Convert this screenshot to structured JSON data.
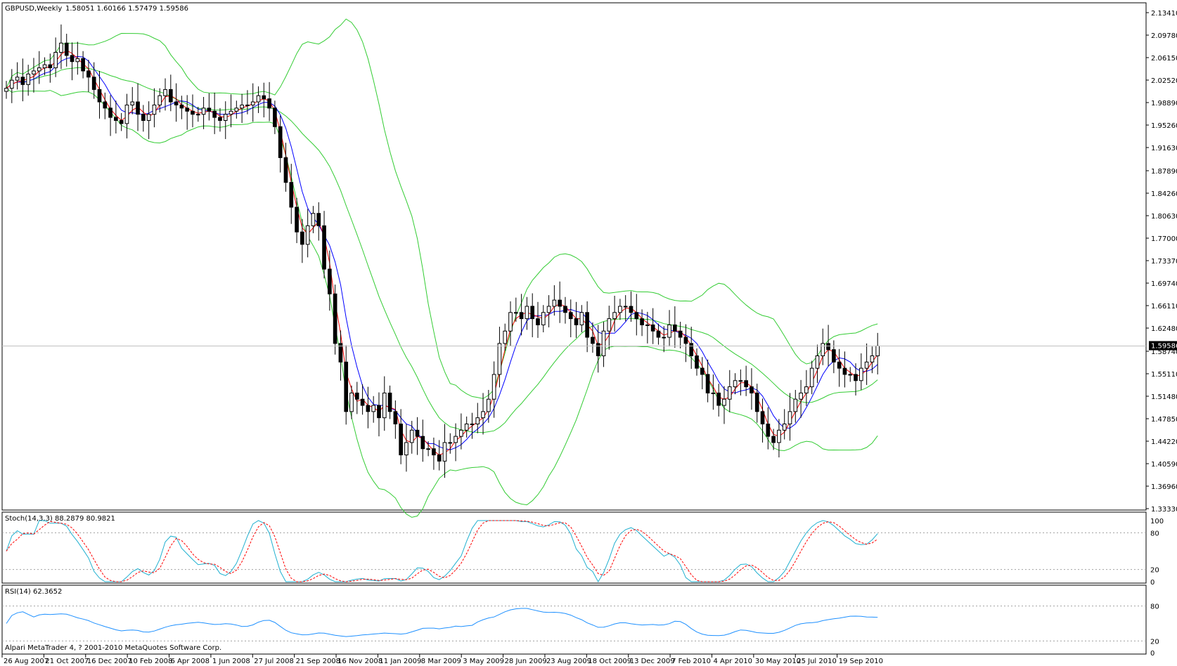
{
  "main_chart": {
    "title": "GBPUSD,Weekly",
    "ohlc_header": "1.58051 1.60166 1.57479 1.59586",
    "current_price_label": "1.59586",
    "y_ticks": [
      "2.13410",
      "2.09780",
      "2.06150",
      "2.02520",
      "1.98890",
      "1.95260",
      "1.91630",
      "1.87890",
      "1.84260",
      "1.80630",
      "1.77000",
      "1.73370",
      "1.69740",
      "1.66110",
      "1.62480",
      "1.58740",
      "1.55110",
      "1.51480",
      "1.47850",
      "1.44220",
      "1.40590",
      "1.36960",
      "1.33330"
    ],
    "colors": {
      "bollinger": "#33cc33",
      "ma_fast": "#ff0000",
      "ma_slow": "#0000ff",
      "candle_up": "#ffffff",
      "candle_down": "#000000",
      "price_line": "#c0c0c0"
    }
  },
  "stoch": {
    "label": "Stoch(14,3,3) 88.2879 80.9821",
    "y_ticks": [
      "100",
      "80",
      "20",
      "0"
    ],
    "colors": {
      "main": "#20b0d0",
      "signal": "#ff0000"
    }
  },
  "rsi": {
    "label": "RSI(14) 62.3652",
    "y_ticks": [
      "80",
      "20",
      "0"
    ],
    "colors": {
      "line": "#1e90ff"
    }
  },
  "footer": {
    "copyright": "Alpari MetaTrader 4, ? 2001-2010 MetaQuotes Software Corp."
  },
  "x_axis": {
    "labels": [
      "26 Aug 2007",
      "21 Oct 2007",
      "16 Dec 2007",
      "10 Feb 2008",
      "6 Apr 2008",
      "1 Jun 2008",
      "27 Jul 2008",
      "21 Sep 2008",
      "16 Nov 2008",
      "11 Jan 2009",
      "8 Mar 2009",
      "3 May 2009",
      "28 Jun 2009",
      "23 Aug 2009",
      "18 Oct 2009",
      "13 Dec 2009",
      "7 Feb 2010",
      "4 Apr 2010",
      "30 May 2010",
      "25 Jul 2010",
      "19 Sep 2010"
    ]
  },
  "chart_data": {
    "type": "candlestick",
    "x_start": "26 Aug 2007",
    "interval": "weekly",
    "ylim": [
      1.3333,
      2.1341
    ],
    "close_series": [
      2.012,
      2.025,
      2.03,
      2.018,
      2.035,
      2.04,
      2.045,
      2.05,
      2.045,
      2.07,
      2.085,
      2.065,
      2.055,
      2.06,
      2.04,
      2.03,
      2.01,
      1.99,
      1.98,
      1.965,
      1.96,
      1.955,
      1.985,
      1.99,
      1.97,
      1.96,
      1.97,
      1.985,
      2.0,
      2.01,
      1.99,
      1.985,
      1.98,
      1.975,
      1.97,
      1.97,
      1.98,
      1.975,
      1.965,
      1.96,
      1.97,
      1.975,
      1.98,
      1.985,
      1.985,
      1.99,
      2.0,
      1.995,
      1.98,
      1.95,
      1.9,
      1.86,
      1.82,
      1.78,
      1.76,
      1.79,
      1.81,
      1.79,
      1.72,
      1.68,
      1.6,
      1.57,
      1.49,
      1.52,
      1.51,
      1.5,
      1.49,
      1.5,
      1.48,
      1.52,
      1.49,
      1.47,
      1.42,
      1.44,
      1.46,
      1.45,
      1.43,
      1.43,
      1.42,
      1.41,
      1.44,
      1.44,
      1.45,
      1.46,
      1.47,
      1.47,
      1.48,
      1.49,
      1.51,
      1.55,
      1.6,
      1.62,
      1.65,
      1.65,
      1.64,
      1.66,
      1.64,
      1.63,
      1.65,
      1.66,
      1.67,
      1.66,
      1.65,
      1.64,
      1.63,
      1.65,
      1.61,
      1.6,
      1.58,
      1.62,
      1.64,
      1.65,
      1.66,
      1.66,
      1.65,
      1.64,
      1.63,
      1.63,
      1.62,
      1.61,
      1.61,
      1.63,
      1.62,
      1.61,
      1.6,
      1.58,
      1.56,
      1.55,
      1.52,
      1.52,
      1.5,
      1.51,
      1.53,
      1.54,
      1.54,
      1.53,
      1.52,
      1.49,
      1.47,
      1.45,
      1.44,
      1.46,
      1.47,
      1.49,
      1.51,
      1.52,
      1.53,
      1.56,
      1.58,
      1.6,
      1.59,
      1.57,
      1.56,
      1.55,
      1.55,
      1.54,
      1.56,
      1.57,
      1.58,
      1.596
    ]
  }
}
